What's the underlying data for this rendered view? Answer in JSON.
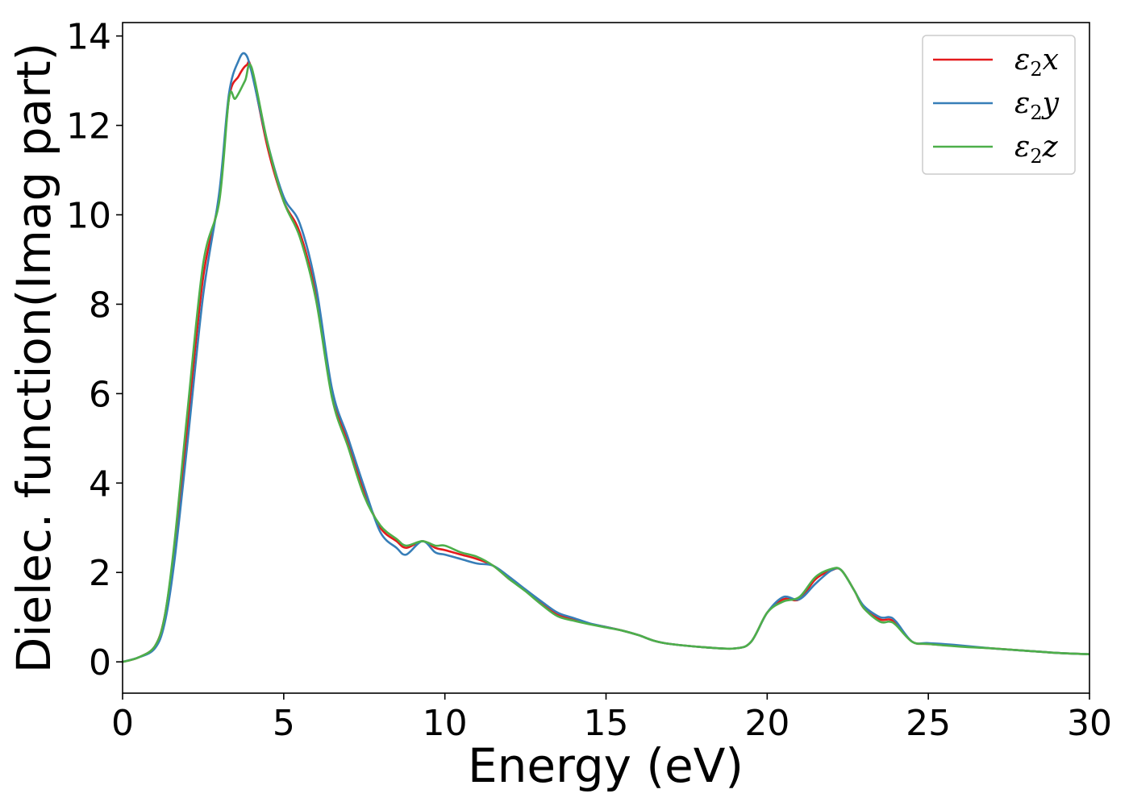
{
  "chart_data": {
    "type": "line",
    "title": "",
    "xlabel": "Energy (eV)",
    "ylabel": "Dielec. function(Imag part)",
    "xlim": [
      0,
      30
    ],
    "ylim": [
      -0.7,
      14.3
    ],
    "xticks": [
      0,
      5,
      10,
      15,
      20,
      25,
      30
    ],
    "yticks": [
      0,
      2,
      4,
      6,
      8,
      10,
      12,
      14
    ],
    "grid": false,
    "legend_position": "top-right",
    "series": [
      {
        "name": "ε2x",
        "legend": {
          "main": "ε",
          "sub": "2",
          "tail": "x"
        },
        "color": "#e41a1c",
        "points": [
          [
            0,
            0
          ],
          [
            0.5,
            0.1
          ],
          [
            1.0,
            0.35
          ],
          [
            1.3,
            1.0
          ],
          [
            1.6,
            2.5
          ],
          [
            2.0,
            5.2
          ],
          [
            2.5,
            8.6
          ],
          [
            3.0,
            10.4
          ],
          [
            3.3,
            12.6
          ],
          [
            3.6,
            13.1
          ],
          [
            3.85,
            13.35
          ],
          [
            4.0,
            13.25
          ],
          [
            4.5,
            11.5
          ],
          [
            5.0,
            10.3
          ],
          [
            5.5,
            9.6
          ],
          [
            6.0,
            8.2
          ],
          [
            6.5,
            6.0
          ],
          [
            7.0,
            4.9
          ],
          [
            7.5,
            3.8
          ],
          [
            8.0,
            3.0
          ],
          [
            8.5,
            2.7
          ],
          [
            8.8,
            2.55
          ],
          [
            9.3,
            2.7
          ],
          [
            9.7,
            2.55
          ],
          [
            10.0,
            2.5
          ],
          [
            10.5,
            2.4
          ],
          [
            11.0,
            2.3
          ],
          [
            11.5,
            2.15
          ],
          [
            12.0,
            1.85
          ],
          [
            12.5,
            1.6
          ],
          [
            13.0,
            1.3
          ],
          [
            13.5,
            1.05
          ],
          [
            14.0,
            0.95
          ],
          [
            14.5,
            0.85
          ],
          [
            15.0,
            0.78
          ],
          [
            15.5,
            0.7
          ],
          [
            16.0,
            0.6
          ],
          [
            16.5,
            0.47
          ],
          [
            17.0,
            0.4
          ],
          [
            18.0,
            0.33
          ],
          [
            19.0,
            0.3
          ],
          [
            19.5,
            0.45
          ],
          [
            20.0,
            1.1
          ],
          [
            20.5,
            1.4
          ],
          [
            21.0,
            1.4
          ],
          [
            21.5,
            1.85
          ],
          [
            22.0,
            2.05
          ],
          [
            22.3,
            2.05
          ],
          [
            22.7,
            1.6
          ],
          [
            23.0,
            1.2
          ],
          [
            23.5,
            0.95
          ],
          [
            23.8,
            0.95
          ],
          [
            24.0,
            0.85
          ],
          [
            24.5,
            0.45
          ],
          [
            25.0,
            0.4
          ],
          [
            26.0,
            0.35
          ],
          [
            27.0,
            0.3
          ],
          [
            28.0,
            0.25
          ],
          [
            29.0,
            0.2
          ],
          [
            30.0,
            0.17
          ]
        ]
      },
      {
        "name": "ε2y",
        "legend": {
          "main": "ε",
          "sub": "2",
          "tail": "y"
        },
        "color": "#377eb8",
        "points": [
          [
            0,
            0
          ],
          [
            0.5,
            0.1
          ],
          [
            1.0,
            0.3
          ],
          [
            1.3,
            0.85
          ],
          [
            1.6,
            2.2
          ],
          [
            2.0,
            4.8
          ],
          [
            2.5,
            8.2
          ],
          [
            3.0,
            10.5
          ],
          [
            3.3,
            12.7
          ],
          [
            3.6,
            13.45
          ],
          [
            3.8,
            13.6
          ],
          [
            4.0,
            13.2
          ],
          [
            4.5,
            11.6
          ],
          [
            5.0,
            10.4
          ],
          [
            5.5,
            9.8
          ],
          [
            6.0,
            8.4
          ],
          [
            6.5,
            6.1
          ],
          [
            7.0,
            5.0
          ],
          [
            7.5,
            3.9
          ],
          [
            8.0,
            2.9
          ],
          [
            8.5,
            2.55
          ],
          [
            8.8,
            2.4
          ],
          [
            9.3,
            2.7
          ],
          [
            9.7,
            2.45
          ],
          [
            10.0,
            2.4
          ],
          [
            10.5,
            2.3
          ],
          [
            11.0,
            2.2
          ],
          [
            11.5,
            2.15
          ],
          [
            12.0,
            1.9
          ],
          [
            12.5,
            1.62
          ],
          [
            13.0,
            1.35
          ],
          [
            13.5,
            1.1
          ],
          [
            14.0,
            0.98
          ],
          [
            14.5,
            0.86
          ],
          [
            15.0,
            0.78
          ],
          [
            15.5,
            0.7
          ],
          [
            16.0,
            0.6
          ],
          [
            16.5,
            0.47
          ],
          [
            17.0,
            0.4
          ],
          [
            18.0,
            0.33
          ],
          [
            19.0,
            0.3
          ],
          [
            19.5,
            0.45
          ],
          [
            20.0,
            1.1
          ],
          [
            20.5,
            1.45
          ],
          [
            21.0,
            1.4
          ],
          [
            21.5,
            1.75
          ],
          [
            22.0,
            2.05
          ],
          [
            22.3,
            2.05
          ],
          [
            22.7,
            1.6
          ],
          [
            23.0,
            1.25
          ],
          [
            23.5,
            1.0
          ],
          [
            23.8,
            1.0
          ],
          [
            24.0,
            0.9
          ],
          [
            24.5,
            0.45
          ],
          [
            25.0,
            0.42
          ],
          [
            25.8,
            0.38
          ],
          [
            27.0,
            0.3
          ],
          [
            28.0,
            0.25
          ],
          [
            29.0,
            0.2
          ],
          [
            30.0,
            0.17
          ]
        ]
      },
      {
        "name": "ε2z",
        "legend": {
          "main": "ε",
          "sub": "2",
          "tail": "z"
        },
        "color": "#4daf4a",
        "points": [
          [
            0,
            0
          ],
          [
            0.5,
            0.1
          ],
          [
            1.0,
            0.35
          ],
          [
            1.3,
            1.0
          ],
          [
            1.6,
            2.6
          ],
          [
            2.0,
            5.5
          ],
          [
            2.5,
            8.9
          ],
          [
            3.0,
            10.3
          ],
          [
            3.3,
            12.6
          ],
          [
            3.5,
            12.6
          ],
          [
            3.8,
            13.0
          ],
          [
            4.0,
            13.3
          ],
          [
            4.5,
            11.6
          ],
          [
            5.0,
            10.3
          ],
          [
            5.5,
            9.5
          ],
          [
            6.0,
            8.1
          ],
          [
            6.5,
            5.9
          ],
          [
            7.0,
            4.8
          ],
          [
            7.5,
            3.7
          ],
          [
            8.0,
            3.05
          ],
          [
            8.5,
            2.75
          ],
          [
            8.8,
            2.6
          ],
          [
            9.3,
            2.7
          ],
          [
            9.7,
            2.6
          ],
          [
            10.0,
            2.6
          ],
          [
            10.5,
            2.45
          ],
          [
            11.0,
            2.35
          ],
          [
            11.5,
            2.15
          ],
          [
            12.0,
            1.85
          ],
          [
            12.5,
            1.58
          ],
          [
            13.0,
            1.28
          ],
          [
            13.5,
            1.02
          ],
          [
            14.0,
            0.92
          ],
          [
            14.5,
            0.84
          ],
          [
            15.0,
            0.77
          ],
          [
            15.5,
            0.7
          ],
          [
            16.0,
            0.6
          ],
          [
            16.5,
            0.47
          ],
          [
            17.0,
            0.4
          ],
          [
            18.0,
            0.33
          ],
          [
            19.0,
            0.3
          ],
          [
            19.5,
            0.45
          ],
          [
            20.0,
            1.1
          ],
          [
            20.5,
            1.35
          ],
          [
            21.0,
            1.45
          ],
          [
            21.5,
            1.9
          ],
          [
            22.0,
            2.08
          ],
          [
            22.3,
            2.05
          ],
          [
            22.7,
            1.6
          ],
          [
            23.0,
            1.2
          ],
          [
            23.5,
            0.9
          ],
          [
            23.8,
            0.9
          ],
          [
            24.0,
            0.82
          ],
          [
            24.5,
            0.45
          ],
          [
            25.0,
            0.4
          ],
          [
            26.0,
            0.34
          ],
          [
            27.0,
            0.3
          ],
          [
            28.0,
            0.25
          ],
          [
            29.0,
            0.2
          ],
          [
            30.0,
            0.17
          ]
        ]
      }
    ]
  }
}
